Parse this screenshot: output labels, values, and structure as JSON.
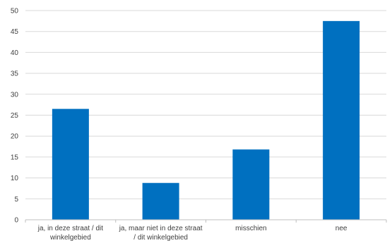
{
  "chart_data": {
    "type": "bar",
    "categories": [
      [
        "ja, in deze straat / dit",
        "winkelgebied"
      ],
      [
        "ja, maar niet in deze straat",
        "/ dit winkelgebied"
      ],
      [
        "misschien"
      ],
      [
        "nee"
      ]
    ],
    "values": [
      26.5,
      8.8,
      16.8,
      47.5
    ],
    "ylim": [
      0,
      50
    ],
    "yticks": [
      "0",
      "5",
      "10",
      "15",
      "20",
      "25",
      "30",
      "35",
      "40",
      "45",
      "50"
    ],
    "grid": true,
    "bar_color": "#0070C0",
    "grid_color": "#d9d9d9",
    "axis_color": "#bfbfbf",
    "title": "",
    "xlabel": "",
    "ylabel": ""
  }
}
